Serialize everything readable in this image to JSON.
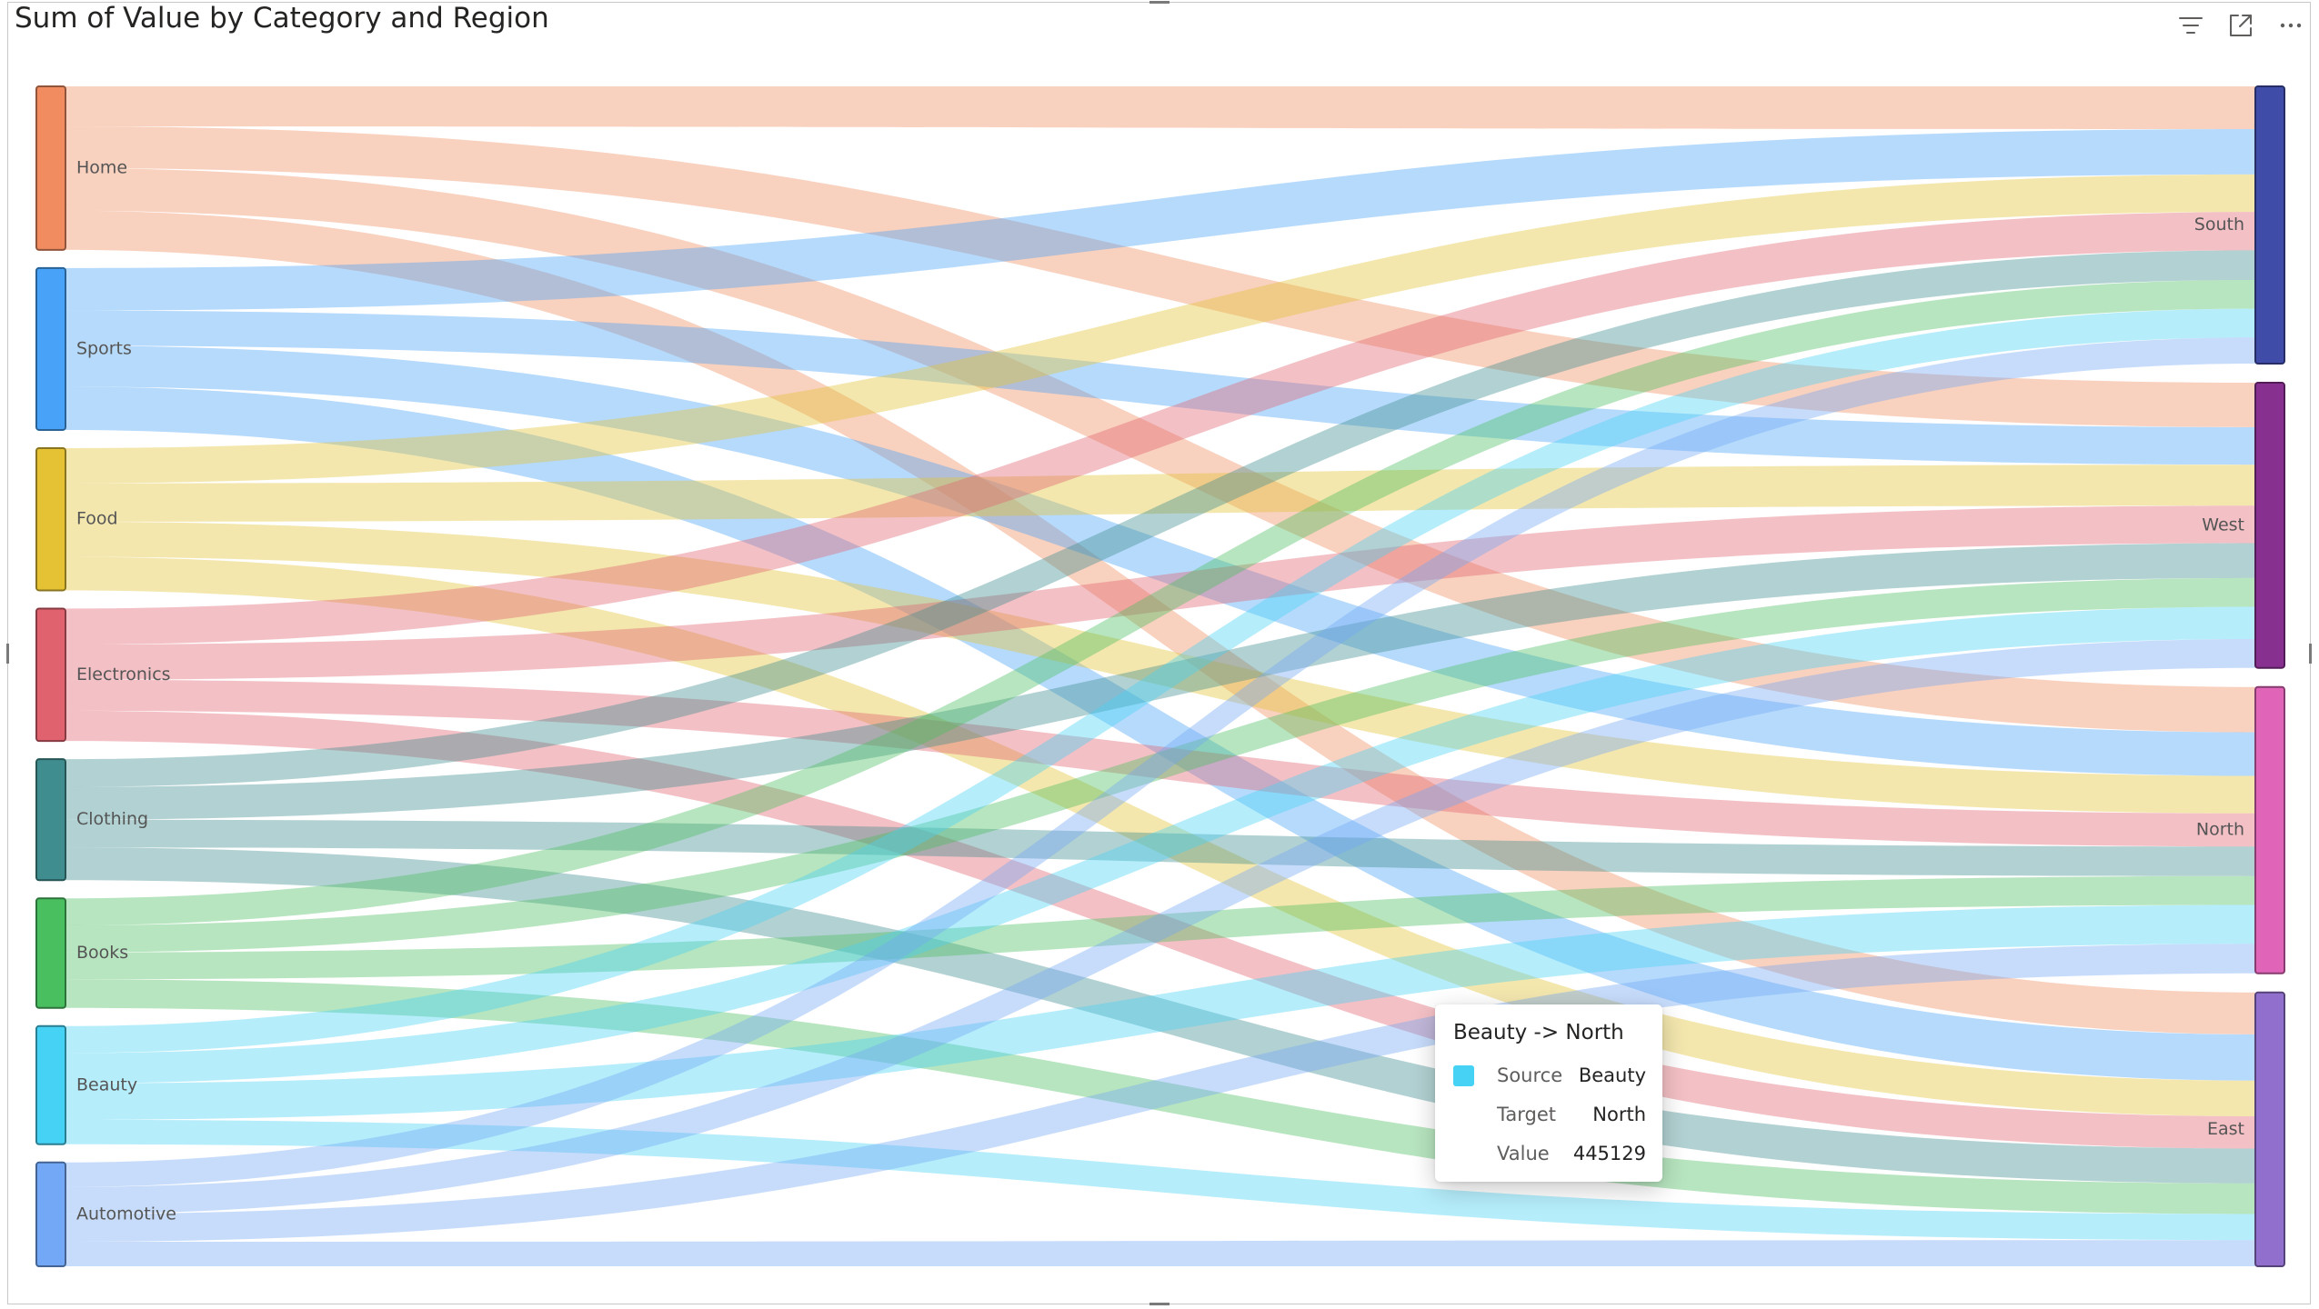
{
  "visual": {
    "title": "Sum of Value by Category and Region",
    "header_icons": [
      "filter-icon",
      "focus-mode-icon",
      "more-options-icon"
    ]
  },
  "chart_data": {
    "type": "sankey",
    "title": "Sum of Value by Category and Region",
    "sources": [
      {
        "name": "Home",
        "color": "#F08C60"
      },
      {
        "name": "Sports",
        "color": "#48A3F8"
      },
      {
        "name": "Food",
        "color": "#E4C234"
      },
      {
        "name": "Electronics",
        "color": "#E0626E"
      },
      {
        "name": "Clothing",
        "color": "#3F8D8F"
      },
      {
        "name": "Books",
        "color": "#4ABF60"
      },
      {
        "name": "Beauty",
        "color": "#45D2F4"
      },
      {
        "name": "Automotive",
        "color": "#72A8F6"
      }
    ],
    "targets": [
      {
        "name": "South",
        "color": "#3F4DA8"
      },
      {
        "name": "West",
        "color": "#883090"
      },
      {
        "name": "North",
        "color": "#E064B8"
      },
      {
        "name": "East",
        "color": "#9070CC"
      }
    ],
    "links": [
      {
        "source": "Home",
        "target": "South",
        "value": 490000
      },
      {
        "source": "Home",
        "target": "West",
        "value": 510000
      },
      {
        "source": "Home",
        "target": "North",
        "value": 520000
      },
      {
        "source": "Home",
        "target": "East",
        "value": 480000
      },
      {
        "source": "Sports",
        "target": "South",
        "value": 520000
      },
      {
        "source": "Sports",
        "target": "West",
        "value": 430000
      },
      {
        "source": "Sports",
        "target": "North",
        "value": 500000
      },
      {
        "source": "Sports",
        "target": "East",
        "value": 530000
      },
      {
        "source": "Food",
        "target": "South",
        "value": 430000
      },
      {
        "source": "Food",
        "target": "West",
        "value": 470000
      },
      {
        "source": "Food",
        "target": "North",
        "value": 430000
      },
      {
        "source": "Food",
        "target": "East",
        "value": 410000
      },
      {
        "source": "Electronics",
        "target": "South",
        "value": 440000
      },
      {
        "source": "Electronics",
        "target": "West",
        "value": 430000
      },
      {
        "source": "Electronics",
        "target": "North",
        "value": 380000
      },
      {
        "source": "Electronics",
        "target": "East",
        "value": 370000
      },
      {
        "source": "Clothing",
        "target": "South",
        "value": 340000
      },
      {
        "source": "Clothing",
        "target": "West",
        "value": 400000
      },
      {
        "source": "Clothing",
        "target": "North",
        "value": 340000
      },
      {
        "source": "Clothing",
        "target": "East",
        "value": 400000
      },
      {
        "source": "Books",
        "target": "South",
        "value": 330000
      },
      {
        "source": "Books",
        "target": "West",
        "value": 330000
      },
      {
        "source": "Books",
        "target": "North",
        "value": 330000
      },
      {
        "source": "Books",
        "target": "East",
        "value": 350000
      },
      {
        "source": "Beauty",
        "target": "South",
        "value": 330000
      },
      {
        "source": "Beauty",
        "target": "West",
        "value": 370000
      },
      {
        "source": "Beauty",
        "target": "North",
        "value": 445129
      },
      {
        "source": "Beauty",
        "target": "East",
        "value": 300000
      },
      {
        "source": "Automotive",
        "target": "South",
        "value": 300000
      },
      {
        "source": "Automotive",
        "target": "West",
        "value": 330000
      },
      {
        "source": "Automotive",
        "target": "North",
        "value": 340000
      },
      {
        "source": "Automotive",
        "target": "East",
        "value": 300000
      }
    ]
  },
  "tooltip": {
    "title": "Beauty -> North",
    "swatch_color": "#45D2F4",
    "rows": [
      {
        "label": "Source",
        "value": "Beauty"
      },
      {
        "label": "Target",
        "value": "North"
      },
      {
        "label": "Value",
        "value": "445129"
      }
    ]
  }
}
